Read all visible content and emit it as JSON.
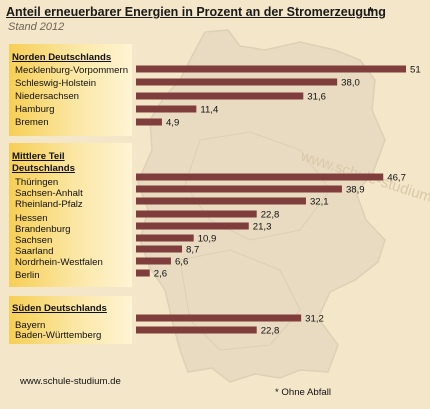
{
  "title": "Anteil erneuerbarer Energien in Prozent an der Stromerzeugung",
  "title_mark": "*",
  "subtitle": "Stand 2012",
  "source": "www.schule-studium.de",
  "watermark": "www.schule-studium.de",
  "footnote": "* Ohne Abfall",
  "colors": {
    "background": "#f3e6c9",
    "bar": "#7f3e3b",
    "panel": "#f7cf55",
    "map": "#e8dbc1"
  },
  "chart_data": {
    "type": "bar",
    "orientation": "horizontal",
    "title": "Anteil erneuerbarer Energien in Prozent an der Stromerzeugung",
    "subtitle": "Stand 2012",
    "xlim": [
      0,
      51
    ],
    "groups": [
      {
        "name": "Norden Deutschlands",
        "categories": [
          "Mecklenburg-Vorpommern",
          "Schleswig-Holstein",
          "Niedersachsen",
          "Hamburg",
          "Bremen"
        ],
        "values": [
          51,
          38.0,
          31.6,
          11.4,
          4.9
        ],
        "labels": [
          "51",
          "38,0",
          "31,6",
          "11,4",
          "4,9"
        ]
      },
      {
        "name": "Mittlere Teil Deutschlands",
        "categories": [
          "Thüringen",
          "Sachsen-Anhalt",
          "Rheinland-Pfalz",
          "Hessen",
          "Brandenburg",
          "Sachsen",
          "Saarland",
          "Nordrhein-Westfalen",
          "Berlin"
        ],
        "values": [
          46.7,
          38.9,
          32.1,
          22.8,
          21.3,
          10.9,
          8.7,
          6.6,
          2.6
        ],
        "labels": [
          "46,7",
          "38,9",
          "32,1",
          "22,8",
          "21,3",
          "10,9",
          "8,7",
          "6,6",
          "2,6"
        ]
      },
      {
        "name": "Süden Deutschlands",
        "categories": [
          "Bayern",
          "Baden-Württemberg"
        ],
        "values": [
          31.2,
          22.8
        ],
        "labels": [
          "31,2",
          "22,8"
        ]
      }
    ]
  }
}
